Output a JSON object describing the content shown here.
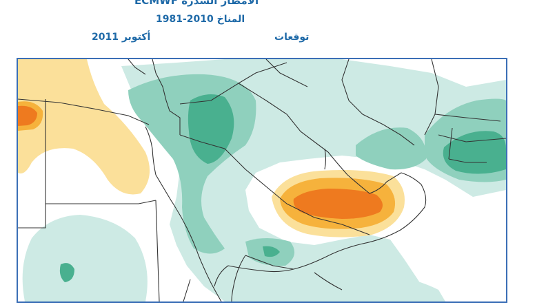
{
  "header": {
    "title": "الأمطار الشدرة ECMWF",
    "climate": "المناخ 2010-1981",
    "forecast_label": "توقعات",
    "month": "أكتوبر 2011"
  },
  "map": {
    "colors": {
      "frame": "#3b6fb6",
      "wet_light": "#cdeae4",
      "wet_medium": "#8fd0bd",
      "wet_strong": "#49b08f",
      "dry_light": "#fbe09a",
      "dry_medium": "#f6b23c",
      "dry_strong": "#ee7a1f"
    }
  }
}
